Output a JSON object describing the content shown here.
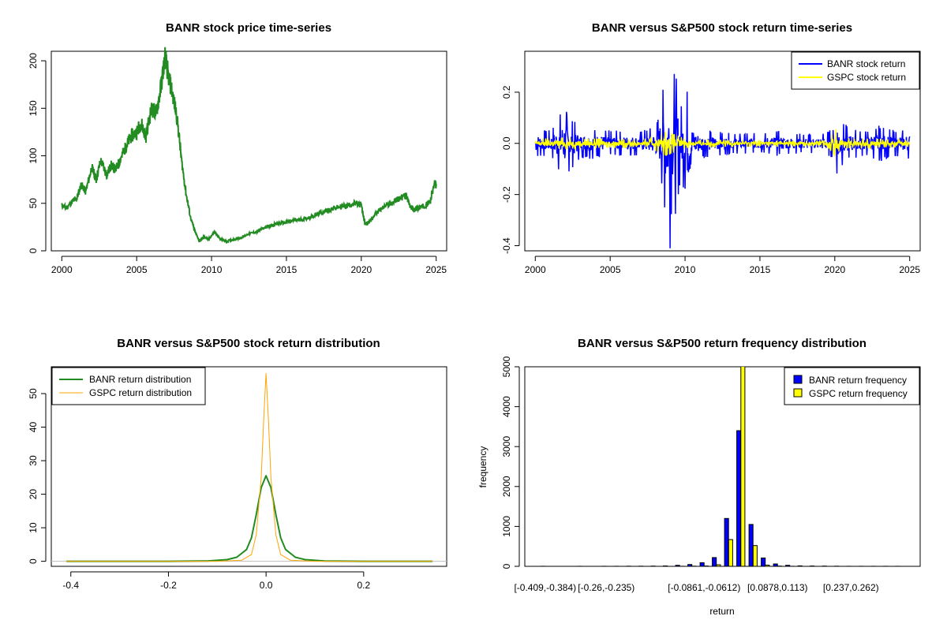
{
  "chart_data": [
    {
      "type": "line",
      "title": "BANR stock price time-series",
      "xlabel": "",
      "ylabel": "",
      "xlim": [
        1999.3,
        2025.7
      ],
      "ylim": [
        0,
        210
      ],
      "x_ticks": [
        2000,
        2005,
        2010,
        2015,
        2020,
        2025
      ],
      "y_ticks": [
        0,
        50,
        100,
        150,
        200
      ],
      "grid": false,
      "series": [
        {
          "color": "#228B22",
          "x": [
            2000.0,
            2000.3,
            2000.7,
            2001.0,
            2001.3,
            2001.6,
            2002.0,
            2002.3,
            2002.6,
            2003.0,
            2003.3,
            2003.6,
            2004.0,
            2004.3,
            2004.6,
            2005.0,
            2005.3,
            2005.6,
            2006.0,
            2006.3,
            2006.6,
            2006.9,
            2007.1,
            2007.4,
            2007.7,
            2008.0,
            2008.3,
            2008.6,
            2008.9,
            2009.2,
            2009.5,
            2009.8,
            2010.2,
            2010.6,
            2011.0,
            2011.5,
            2012.0,
            2012.5,
            2013.0,
            2013.5,
            2014.0,
            2014.5,
            2015.0,
            2015.5,
            2016.0,
            2016.5,
            2017.0,
            2017.5,
            2018.0,
            2018.5,
            2019.0,
            2019.5,
            2020.0,
            2020.25,
            2020.5,
            2021.0,
            2021.5,
            2022.0,
            2022.5,
            2023.0,
            2023.3,
            2023.6,
            2024.0,
            2024.3,
            2024.6,
            2024.9,
            2025.0
          ],
          "y": [
            48,
            45,
            52,
            55,
            70,
            62,
            88,
            75,
            95,
            80,
            90,
            85,
            100,
            110,
            120,
            125,
            135,
            120,
            150,
            145,
            170,
            205,
            185,
            165,
            140,
            95,
            60,
            35,
            20,
            10,
            15,
            12,
            20,
            12,
            10,
            12,
            14,
            18,
            20,
            24,
            27,
            29,
            30,
            32,
            33,
            35,
            38,
            41,
            44,
            46,
            47,
            50,
            48,
            28,
            30,
            40,
            46,
            50,
            55,
            58,
            45,
            44,
            46,
            48,
            52,
            72,
            68
          ]
        }
      ]
    },
    {
      "type": "line",
      "title": "BANR versus S&P500 stock return time-series",
      "xlabel": "",
      "ylabel": "",
      "xlim": [
        1999.3,
        2025.7
      ],
      "ylim": [
        -0.42,
        0.36
      ],
      "x_ticks": [
        2000,
        2005,
        2010,
        2015,
        2020,
        2025
      ],
      "y_ticks": [
        -0.4,
        -0.2,
        0.0,
        0.2
      ],
      "legend_position": "top-right",
      "legend": [
        "BANR stock return",
        "GSPC stock return"
      ],
      "series": [
        {
          "name": "BANR stock return",
          "color": "#0000FF",
          "x": [
            2000.0,
            2001.0,
            2001.9,
            2002.4,
            2003.0,
            2004.0,
            2005.0,
            2006.0,
            2007.0,
            2007.5,
            2008.0,
            2008.4,
            2008.75,
            2008.85,
            2009.0,
            2009.1,
            2009.3,
            2009.5,
            2009.8,
            2010.0,
            2010.3,
            2010.5,
            2011.0,
            2012.0,
            2013.0,
            2014.0,
            2015.0,
            2016.0,
            2017.0,
            2018.0,
            2019.0,
            2020.0,
            2020.2,
            2020.3,
            2020.6,
            2021.0,
            2022.0,
            2023.0,
            2024.0,
            2025.0
          ],
          "amp": [
            0.06,
            0.05,
            0.15,
            0.1,
            0.06,
            0.06,
            0.05,
            0.05,
            0.05,
            0.06,
            0.07,
            0.15,
            0.34,
            0.28,
            0.41,
            0.25,
            0.3,
            0.22,
            0.15,
            0.2,
            0.26,
            0.1,
            0.06,
            0.05,
            0.04,
            0.04,
            0.04,
            0.05,
            0.04,
            0.04,
            0.04,
            0.06,
            0.16,
            0.11,
            0.08,
            0.06,
            0.05,
            0.07,
            0.05,
            0.06
          ]
        },
        {
          "name": "GSPC stock return",
          "color": "#FFFF00",
          "x": [
            2000.0,
            2002.0,
            2003.0,
            2007.5,
            2008.7,
            2009.2,
            2010.0,
            2012.0,
            2019.5,
            2020.1,
            2020.3,
            2020.6,
            2022.0,
            2025.0
          ],
          "amp": [
            0.02,
            0.025,
            0.02,
            0.015,
            0.05,
            0.04,
            0.02,
            0.015,
            0.012,
            0.06,
            0.03,
            0.02,
            0.02,
            0.015
          ]
        }
      ]
    },
    {
      "type": "line",
      "title": "BANR versus S&P500 stock return distribution",
      "xlabel": "",
      "ylabel": "",
      "xlim": [
        -0.44,
        0.37
      ],
      "ylim": [
        -1.5,
        58
      ],
      "x_ticks": [
        -0.4,
        -0.2,
        0.0,
        0.2
      ],
      "y_ticks": [
        0,
        10,
        20,
        30,
        40,
        50
      ],
      "legend_position": "top-left",
      "legend": [
        "BANR return distribution",
        "GSPC return distribution"
      ],
      "series": [
        {
          "name": "BANR return distribution",
          "color": "#228B22",
          "x": [
            -0.409,
            -0.2,
            -0.12,
            -0.08,
            -0.06,
            -0.04,
            -0.03,
            -0.02,
            -0.01,
            0.0,
            0.01,
            0.02,
            0.03,
            0.04,
            0.06,
            0.08,
            0.12,
            0.2,
            0.341
          ],
          "y": [
            0,
            0,
            0.1,
            0.5,
            1.2,
            3.5,
            7.0,
            14.0,
            22.0,
            25.5,
            22.0,
            14.0,
            7.0,
            3.5,
            1.2,
            0.5,
            0.1,
            0,
            0
          ]
        },
        {
          "name": "GSPC return distribution",
          "color": "#FFA500",
          "x": [
            -0.409,
            -0.1,
            -0.05,
            -0.03,
            -0.02,
            -0.01,
            -0.005,
            0.0,
            0.005,
            0.01,
            0.02,
            0.03,
            0.05,
            0.1,
            0.341
          ],
          "y": [
            0,
            0,
            0.3,
            2.0,
            8.0,
            25.0,
            42.0,
            56.0,
            42.0,
            25.0,
            8.0,
            2.0,
            0.3,
            0,
            0
          ]
        }
      ]
    },
    {
      "type": "bar",
      "title": "BANR versus S&P500 return frequency distribution",
      "xlabel": "return",
      "ylabel": "frequency",
      "ylim": [
        0,
        5000
      ],
      "y_ticks": [
        0,
        1000,
        2000,
        3000,
        4000,
        5000
      ],
      "legend_position": "top-right",
      "legend": [
        "BANR return frequency",
        "GSPC return frequency"
      ],
      "x_tick_labels": [
        {
          "bin": 0,
          "text": "[-0.409,-0.384)"
        },
        {
          "bin": 5,
          "text": "[-0.26,-0.235)"
        },
        {
          "bin": 13,
          "text": "[-0.0861,-0.0612)"
        },
        {
          "bin": 19,
          "text": "[0.0878,0.113)"
        },
        {
          "bin": 25,
          "text": "[0.237,0.262)"
        }
      ],
      "series": [
        {
          "name": "BANR return frequency",
          "color": "#0000FF",
          "values": [
            1,
            0,
            0,
            1,
            0,
            1,
            2,
            3,
            4,
            6,
            10,
            25,
            45,
            90,
            220,
            1200,
            3400,
            1050,
            210,
            60,
            25,
            12,
            8,
            5,
            3,
            2,
            2,
            1,
            1,
            1
          ]
        },
        {
          "name": "GSPC return frequency",
          "color": "#FFFF00",
          "values": [
            0,
            0,
            0,
            0,
            0,
            0,
            0,
            0,
            0,
            0,
            0,
            1,
            3,
            8,
            40,
            670,
            5300,
            520,
            30,
            5,
            1,
            0,
            0,
            0,
            0,
            0,
            0,
            0,
            0,
            0
          ]
        }
      ]
    }
  ]
}
